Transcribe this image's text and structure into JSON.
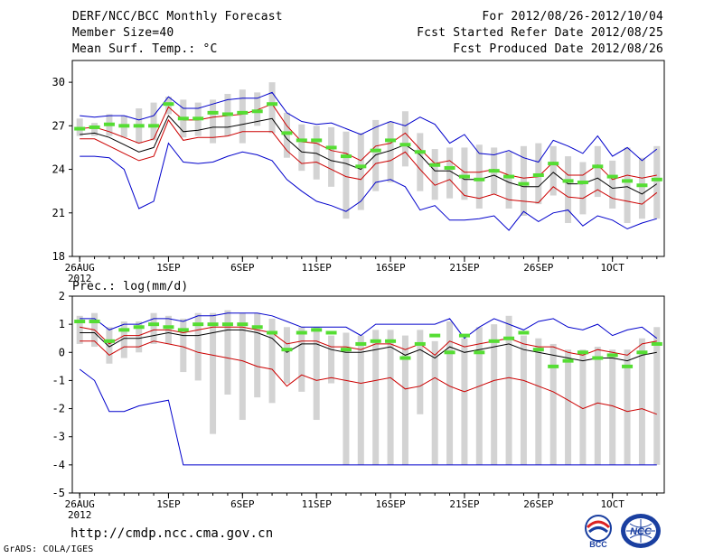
{
  "header": {
    "title": "DERF/NCC/BCC Monthly Forecast",
    "member_size": "Member Size=40",
    "variable": "Mean Surf. Temp.: °C",
    "period": "For 2012/08/26-2012/10/04",
    "refer_date": "Fcst Started Refer Date 2012/08/25",
    "produced_date": "Fcst Produced Date 2012/08/26"
  },
  "footer": {
    "url": "http://cmdp.ncc.cma.gov.cn",
    "credit": "GrADS: COLA/IGES",
    "logo_left_text": "BCC",
    "logo_right_text": "NCC"
  },
  "colors": {
    "envelope": "#0000cc",
    "spread": "#cc0000",
    "mean": "#000000",
    "bar": "#d3d3d3",
    "median_tick": "#55dd33"
  },
  "chart_data": [
    {
      "type": "line",
      "panel": "temperature",
      "title": "Mean Surf. Temp.: °C",
      "ylim": [
        18,
        31.5
      ],
      "yticks": [
        18,
        21,
        24,
        27,
        30
      ],
      "xlim": [
        0.5,
        40.5
      ],
      "xticks": [
        {
          "day": 1,
          "label": "26AUG",
          "sub": "2012"
        },
        {
          "day": 7,
          "label": "1SEP"
        },
        {
          "day": 12,
          "label": "6SEP"
        },
        {
          "day": 17,
          "label": "11SEP"
        },
        {
          "day": 22,
          "label": "16SEP"
        },
        {
          "day": 27,
          "label": "21SEP"
        },
        {
          "day": 32,
          "label": "26SEP"
        },
        {
          "day": 37,
          "label": "1OCT"
        }
      ],
      "series": [
        {
          "name": "max",
          "values": [
            27.7,
            27.6,
            27.7,
            27.7,
            27.4,
            27.7,
            29.0,
            28.2,
            28.2,
            28.5,
            28.8,
            28.9,
            28.9,
            29.3,
            27.9,
            27.3,
            27.1,
            27.2,
            26.8,
            26.4,
            26.9,
            27.3,
            27.0,
            27.6,
            27.1,
            25.8,
            26.4,
            25.1,
            25.0,
            25.3,
            24.8,
            24.5,
            26.0,
            25.6,
            25.1,
            26.3,
            24.9,
            25.5,
            24.6,
            25.4
          ]
        },
        {
          "name": "upper",
          "values": [
            26.8,
            26.9,
            26.6,
            26.2,
            25.8,
            26.1,
            28.3,
            27.4,
            27.4,
            27.6,
            27.7,
            27.8,
            28.1,
            28.5,
            27.0,
            25.9,
            25.8,
            25.3,
            25.1,
            24.6,
            25.6,
            25.8,
            26.5,
            25.4,
            24.4,
            24.6,
            23.8,
            23.8,
            24.0,
            23.6,
            23.4,
            23.5,
            24.5,
            23.6,
            23.6,
            24.3,
            23.3,
            23.6,
            23.4,
            23.6
          ]
        },
        {
          "name": "mean",
          "values": [
            26.4,
            26.5,
            26.2,
            25.7,
            25.2,
            25.5,
            27.7,
            26.6,
            26.7,
            26.9,
            26.9,
            27.1,
            27.3,
            27.5,
            26.1,
            25.2,
            25.1,
            24.6,
            24.4,
            24.0,
            25.0,
            25.3,
            25.7,
            25.0,
            23.9,
            23.9,
            23.3,
            23.3,
            23.6,
            23.1,
            22.8,
            22.8,
            23.8,
            23.0,
            23.0,
            23.4,
            22.7,
            22.8,
            22.3,
            23.0
          ]
        },
        {
          "name": "lower",
          "values": [
            26.1,
            26.1,
            25.6,
            25.1,
            24.6,
            24.9,
            27.4,
            26.0,
            26.2,
            26.2,
            26.3,
            26.6,
            26.6,
            26.6,
            25.3,
            24.4,
            24.5,
            24.0,
            23.5,
            23.3,
            24.4,
            24.6,
            25.2,
            24.0,
            22.9,
            23.3,
            22.2,
            22.0,
            22.3,
            21.9,
            21.8,
            21.7,
            22.8,
            22.1,
            22.0,
            22.6,
            22.0,
            21.8,
            21.6,
            22.4
          ]
        },
        {
          "name": "min",
          "values": [
            24.9,
            24.9,
            24.8,
            24.0,
            21.3,
            21.8,
            25.8,
            24.5,
            24.4,
            24.5,
            24.9,
            25.2,
            25.0,
            24.6,
            23.3,
            22.5,
            21.8,
            21.5,
            21.1,
            21.8,
            23.1,
            23.3,
            22.8,
            21.2,
            21.5,
            20.5,
            20.5,
            20.6,
            20.8,
            19.8,
            21.1,
            20.4,
            21.0,
            21.2,
            20.1,
            20.8,
            20.5,
            19.9,
            20.3,
            20.6
          ]
        },
        {
          "name": "median",
          "values": [
            26.8,
            26.9,
            27.1,
            27.0,
            27.0,
            27.0,
            28.5,
            27.5,
            27.5,
            27.9,
            27.8,
            27.9,
            28.0,
            28.5,
            26.5,
            26.0,
            26.0,
            25.5,
            24.9,
            24.2,
            25.3,
            26.0,
            25.7,
            25.2,
            24.3,
            24.1,
            23.5,
            23.3,
            23.9,
            23.5,
            23.0,
            23.6,
            24.4,
            23.2,
            23.1,
            24.2,
            23.5,
            23.2,
            22.9,
            23.3
          ]
        }
      ],
      "bars": {
        "low": [
          26.3,
          26.3,
          26.3,
          26.2,
          25.8,
          26.0,
          27.8,
          26.2,
          26.3,
          25.8,
          26.3,
          25.8,
          27.0,
          26.5,
          24.8,
          23.9,
          23.3,
          22.8,
          20.6,
          21.2,
          22.5,
          23.1,
          24.2,
          22.5,
          21.9,
          22.0,
          21.9,
          21.3,
          22.3,
          21.3,
          20.8,
          21.6,
          22.2,
          20.3,
          20.9,
          22.1,
          21.3,
          20.3,
          20.6,
          20.6
        ],
        "high": [
          27.5,
          27.2,
          27.8,
          27.7,
          28.2,
          28.6,
          29.0,
          28.8,
          28.6,
          28.8,
          29.2,
          29.5,
          29.3,
          30.0,
          27.9,
          27.1,
          27.0,
          26.9,
          26.6,
          26.5,
          27.4,
          27.3,
          28.0,
          26.5,
          25.4,
          25.5,
          25.5,
          25.7,
          25.5,
          25.2,
          25.6,
          25.8,
          25.6,
          24.9,
          24.5,
          25.6,
          24.6,
          25.5,
          24.8,
          25.6
        ]
      }
    },
    {
      "type": "line",
      "panel": "precipitation",
      "title": "Prec.: log(mm/d)",
      "ylim": [
        -5,
        2
      ],
      "yticks": [
        -5,
        -4,
        -3,
        -2,
        -1,
        0,
        1,
        2
      ],
      "xlim": [
        0.5,
        40.5
      ],
      "xticks": [
        {
          "day": 1,
          "label": "26AUG",
          "sub": "2012"
        },
        {
          "day": 7,
          "label": "1SEP"
        },
        {
          "day": 12,
          "label": "6SEP"
        },
        {
          "day": 17,
          "label": "11SEP"
        },
        {
          "day": 22,
          "label": "16SEP"
        },
        {
          "day": 27,
          "label": "21SEP"
        },
        {
          "day": 32,
          "label": "26SEP"
        },
        {
          "day": 37,
          "label": "1OCT"
        }
      ],
      "series": [
        {
          "name": "max",
          "values": [
            1.2,
            1.2,
            0.8,
            1.0,
            1.0,
            1.2,
            1.2,
            1.1,
            1.3,
            1.3,
            1.4,
            1.4,
            1.4,
            1.3,
            1.1,
            0.9,
            0.9,
            0.9,
            0.9,
            0.6,
            1.0,
            1.0,
            1.0,
            1.0,
            1.0,
            1.2,
            0.5,
            0.9,
            1.2,
            1.0,
            0.8,
            1.1,
            1.2,
            0.9,
            0.8,
            1.0,
            0.6,
            0.8,
            0.9,
            0.5
          ]
        },
        {
          "name": "upper",
          "values": [
            0.9,
            0.8,
            0.3,
            0.6,
            0.6,
            0.8,
            0.8,
            0.7,
            0.8,
            0.9,
            0.9,
            0.9,
            0.8,
            0.7,
            0.3,
            0.4,
            0.4,
            0.2,
            0.2,
            0.1,
            0.3,
            0.3,
            0.1,
            0.3,
            -0.1,
            0.4,
            0.2,
            0.3,
            0.4,
            0.5,
            0.3,
            0.2,
            0.2,
            0.0,
            -0.1,
            0.1,
            0.0,
            -0.1,
            0.3,
            0.4
          ]
        },
        {
          "name": "mean",
          "values": [
            0.7,
            0.7,
            0.2,
            0.5,
            0.5,
            0.6,
            0.7,
            0.6,
            0.6,
            0.7,
            0.8,
            0.8,
            0.7,
            0.5,
            0.0,
            0.3,
            0.3,
            0.1,
            0.0,
            0.0,
            0.1,
            0.2,
            -0.1,
            0.1,
            -0.2,
            0.2,
            0.0,
            0.1,
            0.2,
            0.3,
            0.1,
            0.0,
            -0.1,
            -0.2,
            -0.3,
            -0.2,
            -0.2,
            -0.3,
            -0.1,
            0.0
          ]
        },
        {
          "name": "lower",
          "values": [
            0.4,
            0.4,
            -0.1,
            0.2,
            0.2,
            0.4,
            0.3,
            0.2,
            0.0,
            -0.1,
            -0.2,
            -0.3,
            -0.5,
            -0.6,
            -1.2,
            -0.8,
            -1.0,
            -0.9,
            -1.0,
            -1.1,
            -1.0,
            -0.9,
            -1.3,
            -1.2,
            -0.9,
            -1.2,
            -1.4,
            -1.2,
            -1.0,
            -0.9,
            -1.0,
            -1.2,
            -1.4,
            -1.7,
            -2.0,
            -1.8,
            -1.9,
            -2.1,
            -2.0,
            -2.2
          ]
        },
        {
          "name": "min",
          "values": [
            -0.6,
            -1.0,
            -2.1,
            -2.1,
            -1.9,
            -1.8,
            -1.7,
            -4.0,
            -4.0,
            -4.0,
            -4.0,
            -4.0,
            -4.0,
            -4.0,
            -4.0,
            -4.0,
            -4.0,
            -4.0,
            -4.0,
            -4.0,
            -4.0,
            -4.0,
            -4.0,
            -4.0,
            -4.0,
            -4.0,
            -4.0,
            -4.0,
            -4.0,
            -4.0,
            -4.0,
            -4.0,
            -4.0,
            -4.0,
            -4.0,
            -4.0,
            -4.0,
            -4.0,
            -4.0,
            -4.0
          ]
        },
        {
          "name": "median",
          "values": [
            1.1,
            1.1,
            0.4,
            0.8,
            0.9,
            1.0,
            0.9,
            0.8,
            1.0,
            1.0,
            1.0,
            1.0,
            0.9,
            0.7,
            0.1,
            0.7,
            0.8,
            0.7,
            0.1,
            0.3,
            0.4,
            0.4,
            -0.2,
            0.3,
            0.6,
            0.0,
            0.6,
            0.0,
            0.4,
            0.5,
            0.7,
            0.1,
            -0.5,
            -0.3,
            0.0,
            -0.2,
            -0.1,
            -0.5,
            0.0,
            0.3
          ]
        }
      ],
      "bars": {
        "low": [
          0.3,
          0.2,
          -0.4,
          -0.2,
          0.0,
          0.3,
          0.3,
          -0.7,
          -1.0,
          -2.9,
          -1.5,
          -2.4,
          -1.6,
          -1.8,
          -1.1,
          -1.4,
          -2.4,
          -1.1,
          -4.0,
          -4.0,
          -4.0,
          -4.0,
          -4.0,
          -2.2,
          -4.0,
          -4.0,
          -4.0,
          -4.0,
          -4.0,
          -4.0,
          -4.0,
          -4.0,
          -4.0,
          -4.0,
          -4.0,
          -4.0,
          -4.0,
          -4.0,
          -4.0,
          -4.0
        ],
        "high": [
          1.3,
          1.4,
          0.9,
          1.1,
          1.1,
          1.4,
          1.3,
          1.2,
          1.4,
          1.4,
          1.5,
          1.4,
          1.4,
          1.2,
          0.9,
          0.9,
          0.9,
          0.6,
          0.7,
          0.6,
          0.8,
          0.8,
          0.6,
          0.8,
          0.4,
          1.1,
          0.5,
          0.9,
          1.0,
          1.3,
          0.6,
          0.5,
          0.3,
          0.1,
          0.1,
          0.2,
          0.1,
          0.1,
          0.5,
          0.9
        ]
      }
    }
  ]
}
